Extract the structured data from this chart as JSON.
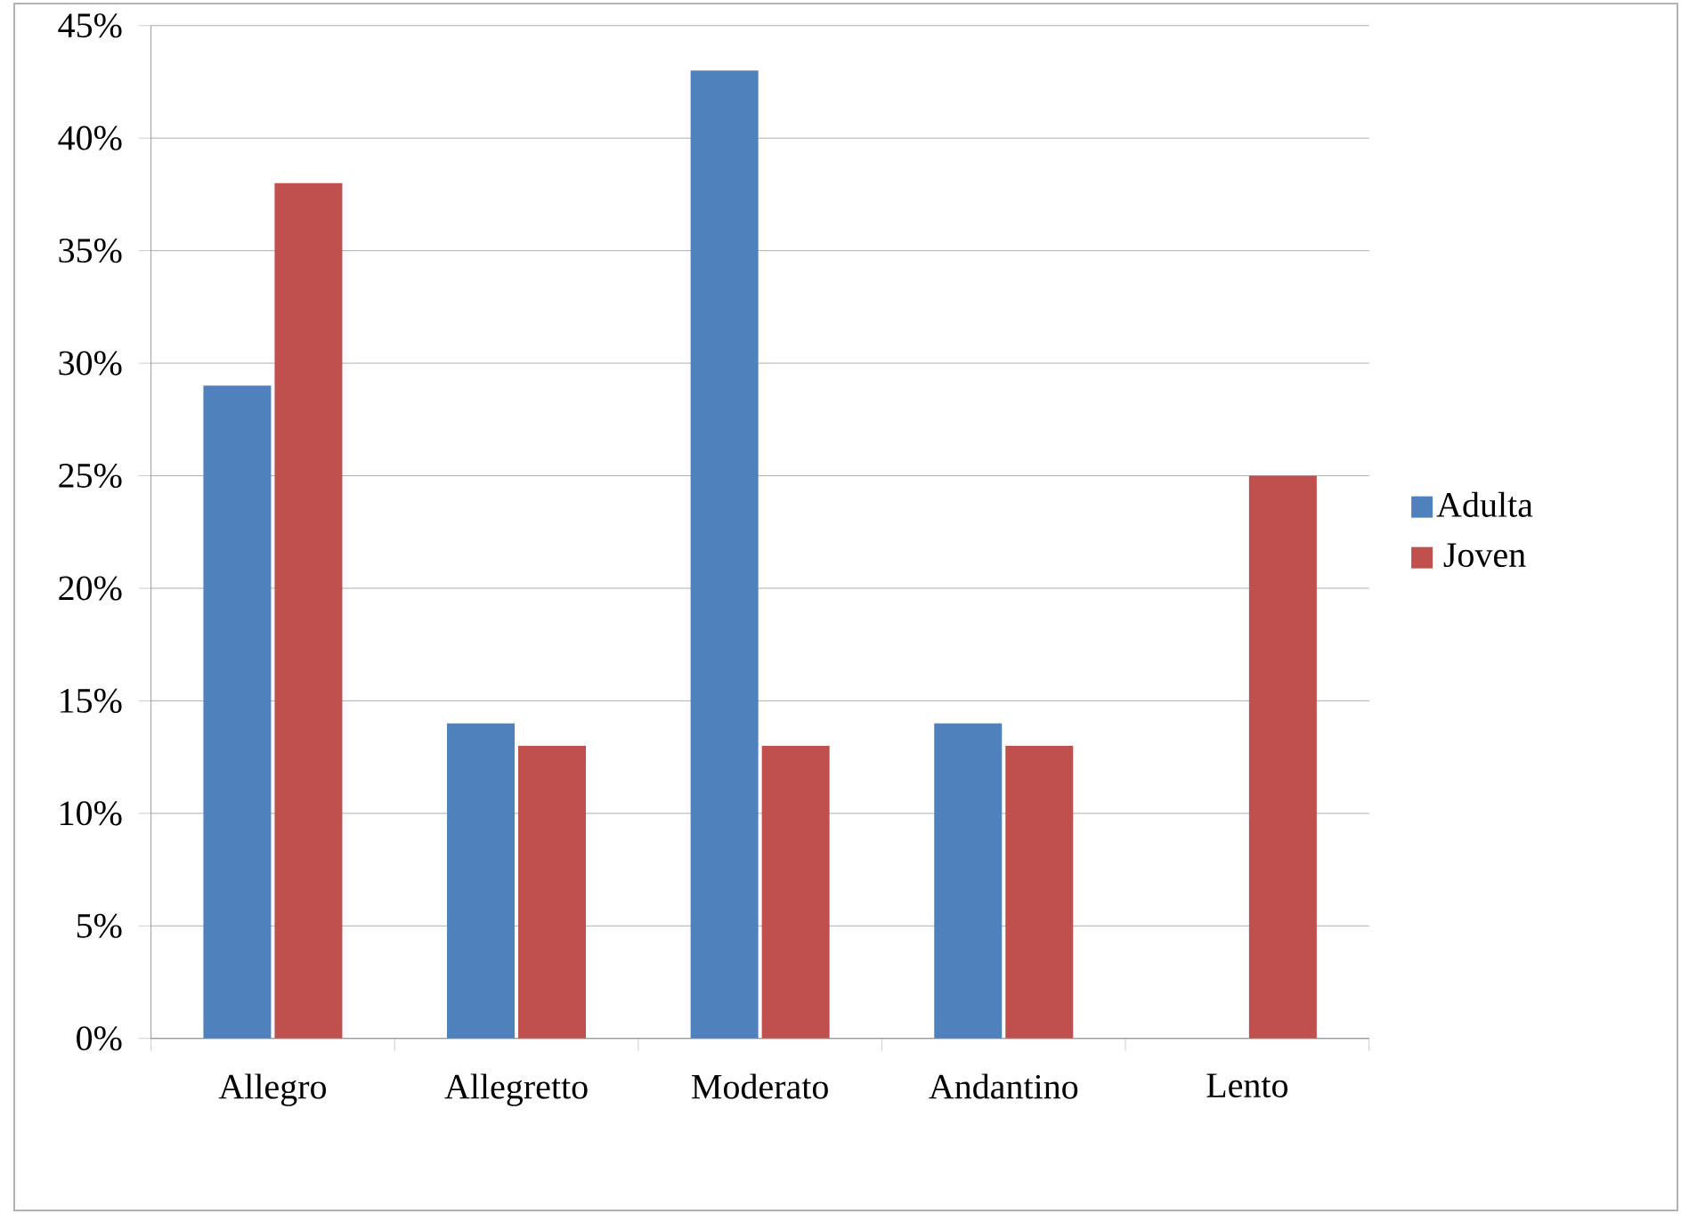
{
  "chart_data": {
    "type": "bar",
    "categories": [
      "Allegro",
      "Allegretto",
      "Moderato",
      "Andantino",
      "Lento"
    ],
    "series": [
      {
        "name": "Adulta",
        "color": "#4f81bd",
        "values": [
          29,
          14,
          43,
          14,
          null
        ]
      },
      {
        "name": "Joven",
        "color": "#c0504d",
        "values": [
          38,
          13,
          13,
          13,
          25
        ]
      }
    ],
    "ylim": [
      0,
      45
    ],
    "yticks": [
      {
        "value": 0,
        "label": "0%"
      },
      {
        "value": 5,
        "label": "5%"
      },
      {
        "value": 10,
        "label": "10%"
      },
      {
        "value": 15,
        "label": "15%"
      },
      {
        "value": 20,
        "label": "20%"
      },
      {
        "value": 25,
        "label": "25%"
      },
      {
        "value": 30,
        "label": "30%"
      },
      {
        "value": 35,
        "label": "35%"
      },
      {
        "value": 40,
        "label": "40%"
      },
      {
        "value": 45,
        "label": "45%"
      }
    ],
    "grid": "y",
    "legend": "right"
  }
}
